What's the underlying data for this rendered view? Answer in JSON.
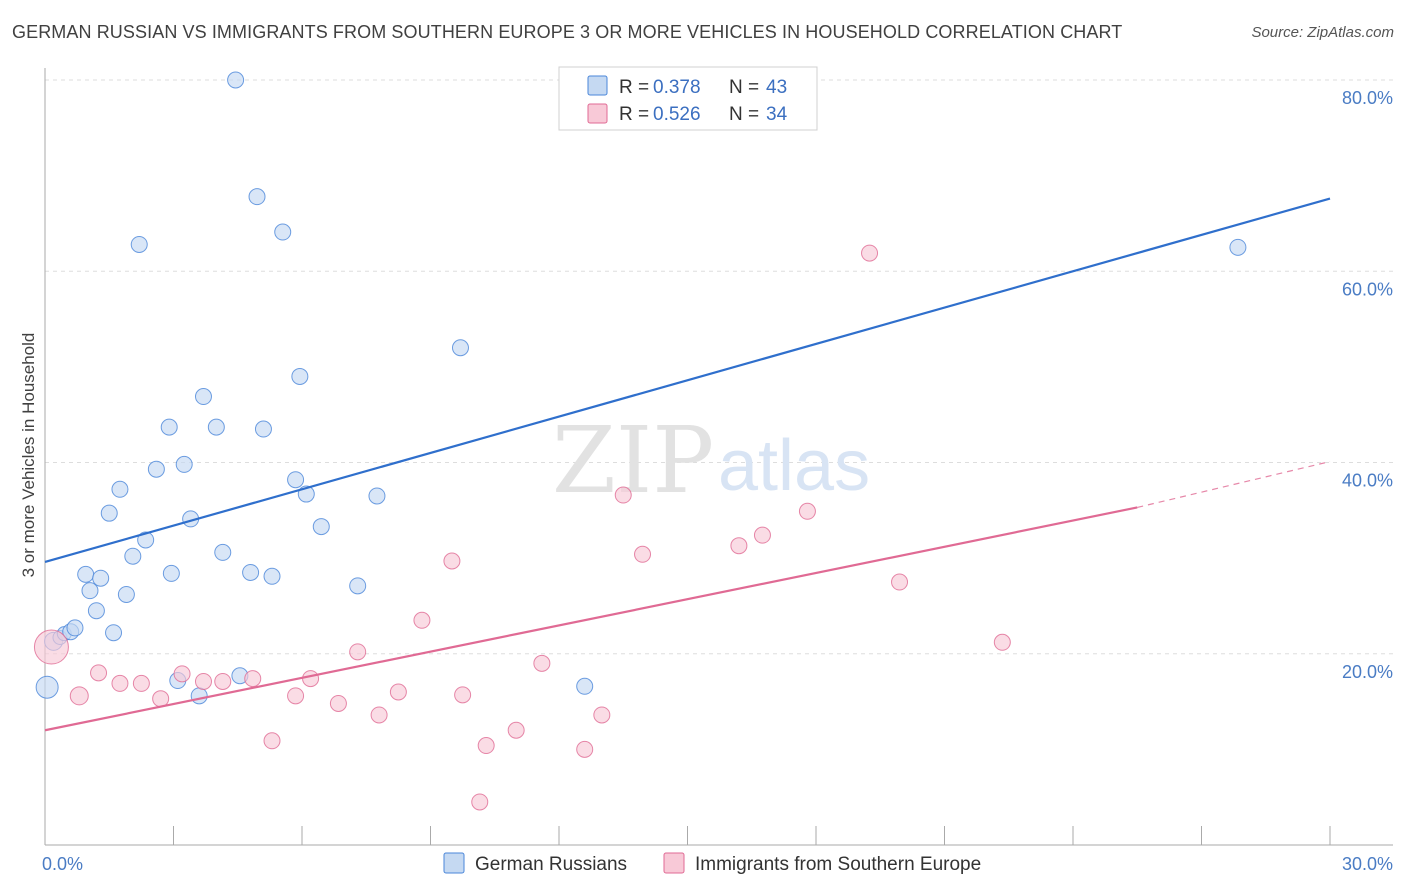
{
  "title": "GERMAN RUSSIAN VS IMMIGRANTS FROM SOUTHERN EUROPE 3 OR MORE VEHICLES IN HOUSEHOLD CORRELATION CHART",
  "source": "Source: ZipAtlas.com",
  "watermark": {
    "zip": "ZIP",
    "atlas": "atlas"
  },
  "colors": {
    "blue": "#4a86d9",
    "blue_fill": "#c5d9f2",
    "pink": "#e06a94",
    "pink_fill": "#f8c9d7",
    "grid": "#dddddd",
    "axis": "#aaaaaa",
    "tick_text": "#4a7cc4"
  },
  "legend": {
    "rows": [
      {
        "r_label": "R = ",
        "r_value": "0.378",
        "n_label": "N = ",
        "n_value": "43",
        "color": "blue"
      },
      {
        "r_label": "R = ",
        "r_value": "0.526",
        "n_label": "N = ",
        "n_value": "34",
        "color": "pink"
      }
    ]
  },
  "chart_data": {
    "type": "scatter",
    "title": "GERMAN RUSSIAN VS IMMIGRANTS FROM SOUTHERN EUROPE 3 OR MORE VEHICLES IN HOUSEHOLD CORRELATION CHART",
    "xlabel": "",
    "ylabel": "3 or more Vehicles in Household",
    "xlim": [
      0,
      30
    ],
    "ylim": [
      0,
      82
    ],
    "x_tick_labels": [
      {
        "value": 0,
        "label": "0.0%"
      },
      {
        "value": 30,
        "label": "30.0%"
      }
    ],
    "y_tick_labels": [
      {
        "value": 20,
        "label": "20.0%"
      },
      {
        "value": 40,
        "label": "40.0%"
      },
      {
        "value": 60,
        "label": "60.0%"
      },
      {
        "value": 80,
        "label": "80.0%"
      }
    ],
    "grid": true,
    "legend_position": "top-center",
    "series": [
      {
        "name": "German Russians",
        "color": "blue",
        "trend": {
          "x0": 0,
          "y0": 29.6,
          "x1": 30,
          "y1": 67.6
        },
        "points": [
          [
            0.05,
            16.5,
            22
          ],
          [
            0.2,
            21.3,
            18
          ],
          [
            0.35,
            21.7,
            14
          ],
          [
            0.45,
            22.1,
            14
          ],
          [
            0.6,
            22.3,
            16
          ],
          [
            0.7,
            22.7,
            16
          ],
          [
            0.95,
            28.3,
            16
          ],
          [
            1.05,
            26.6,
            16
          ],
          [
            1.2,
            24.5,
            16
          ],
          [
            1.3,
            27.9,
            16
          ],
          [
            1.5,
            34.7,
            16
          ],
          [
            1.6,
            22.2,
            16
          ],
          [
            1.75,
            37.2,
            16
          ],
          [
            1.9,
            26.2,
            16
          ],
          [
            2.05,
            30.2,
            16
          ],
          [
            2.2,
            62.8,
            16
          ],
          [
            2.35,
            31.9,
            16
          ],
          [
            2.6,
            39.3,
            16
          ],
          [
            2.9,
            43.7,
            16
          ],
          [
            2.95,
            28.4,
            16
          ],
          [
            3.1,
            17.2,
            16
          ],
          [
            3.25,
            39.8,
            16
          ],
          [
            3.4,
            34.1,
            16
          ],
          [
            3.6,
            15.6,
            16
          ],
          [
            3.7,
            46.9,
            16
          ],
          [
            4.0,
            43.7,
            16
          ],
          [
            4.15,
            30.6,
            16
          ],
          [
            4.45,
            80.0,
            16
          ],
          [
            4.55,
            17.7,
            16
          ],
          [
            4.8,
            28.5,
            16
          ],
          [
            4.95,
            67.8,
            16
          ],
          [
            5.1,
            43.5,
            16
          ],
          [
            5.3,
            28.1,
            16
          ],
          [
            5.55,
            64.1,
            16
          ],
          [
            5.85,
            38.2,
            16
          ],
          [
            5.95,
            49.0,
            16
          ],
          [
            6.1,
            36.7,
            16
          ],
          [
            6.45,
            33.3,
            16
          ],
          [
            7.3,
            27.1,
            16
          ],
          [
            7.75,
            36.5,
            16
          ],
          [
            9.7,
            52.0,
            16
          ],
          [
            12.6,
            16.6,
            16
          ],
          [
            27.85,
            62.5,
            16
          ]
        ]
      },
      {
        "name": "Immigrants from Southern Europe",
        "color": "pink",
        "trend": {
          "x0": 0,
          "y0": 12.0,
          "x1": 25.5,
          "y1": 35.3
        },
        "trend_dashed": {
          "x0": 25.5,
          "y0": 35.3,
          "x1": 30,
          "y1": 40.1
        },
        "points": [
          [
            0.15,
            20.7,
            34
          ],
          [
            0.8,
            15.6,
            18
          ],
          [
            1.25,
            18.0,
            16
          ],
          [
            1.75,
            16.9,
            16
          ],
          [
            2.25,
            16.9,
            16
          ],
          [
            2.7,
            15.3,
            16
          ],
          [
            3.2,
            17.9,
            16
          ],
          [
            3.7,
            17.1,
            16
          ],
          [
            4.15,
            17.1,
            16
          ],
          [
            4.85,
            17.4,
            16
          ],
          [
            5.3,
            10.9,
            16
          ],
          [
            5.85,
            15.6,
            16
          ],
          [
            6.2,
            17.4,
            16
          ],
          [
            6.85,
            14.8,
            16
          ],
          [
            7.3,
            20.2,
            16
          ],
          [
            7.8,
            13.6,
            16
          ],
          [
            8.25,
            16.0,
            16
          ],
          [
            8.8,
            23.5,
            16
          ],
          [
            9.5,
            29.7,
            16
          ],
          [
            9.75,
            15.7,
            16
          ],
          [
            10.15,
            4.5,
            16
          ],
          [
            10.3,
            10.4,
            16
          ],
          [
            11.0,
            12.0,
            16
          ],
          [
            11.6,
            19.0,
            16
          ],
          [
            12.6,
            10.0,
            16
          ],
          [
            13.0,
            13.6,
            16
          ],
          [
            13.5,
            36.6,
            16
          ],
          [
            13.95,
            30.4,
            16
          ],
          [
            16.2,
            31.3,
            16
          ],
          [
            16.75,
            32.4,
            16
          ],
          [
            17.8,
            34.9,
            16
          ],
          [
            19.25,
            61.9,
            16
          ],
          [
            19.95,
            27.5,
            16
          ],
          [
            22.35,
            21.2,
            16
          ]
        ]
      }
    ]
  },
  "bottom_legend": [
    {
      "label": "German Russians",
      "color": "blue"
    },
    {
      "label": "Immigrants from Southern Europe",
      "color": "pink"
    }
  ]
}
